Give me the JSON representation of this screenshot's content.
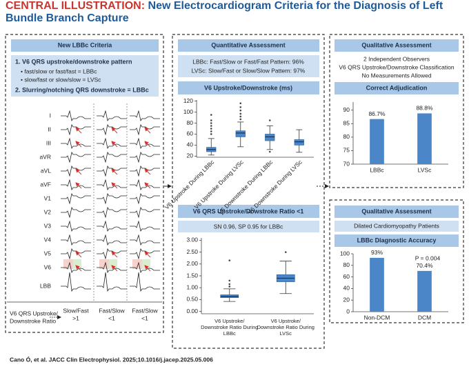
{
  "header": {
    "label": "CENTRAL ILLUSTRATION:",
    "title": "New Electrocardiogram Criteria for the Diagnosis of Left Bundle Branch Capture"
  },
  "left_panel": {
    "heading": "New LBBc Criteria",
    "criteria": [
      "1. V6 QRS upstroke/downstroke pattern",
      "• fast/slow or fast/fast = LBBc",
      "• slow/fast or slow/slow = LVSc",
      "2. Slurring/notching QRS downstroke = LBBc"
    ],
    "leads": [
      "I",
      "II",
      "III",
      "aVR",
      "aVL",
      "aVF",
      "V1",
      "V2",
      "V3",
      "V4",
      "V5",
      "V6",
      "LBB"
    ],
    "ratio_label": [
      "V6 QRS Upstroke/",
      "Downstroke Ratio"
    ],
    "columns": [
      {
        "pattern": "Slow/Fast",
        "ratio": ">1"
      },
      {
        "pattern": "Fast/Slow",
        "ratio": "<1"
      },
      {
        "pattern": "Fast/Slow",
        "ratio": "<1"
      }
    ]
  },
  "middle_panel": {
    "heading": "Quantitative Assessment",
    "results": [
      "LBBc: Fast/Slow or Fast/Fast Pattern: 96%",
      "LVSc: Slow/Fast or Slow/Slow Pattern: 97%"
    ]
  },
  "right_panel": {
    "heading": "Qualitative Assessment",
    "notes": [
      "2 Independent Observers",
      "V6 QRS Upstroke/Downstroke Classification",
      "No Measurements Allowed"
    ],
    "lower_heading": "Qualitative Assessment",
    "lower_note": "Dilated Cardiomyopathy Patients"
  },
  "chart_data": [
    {
      "type": "box",
      "title": "V6 Upstroke/Downstroke (ms)",
      "color": "#4a86c8",
      "categories": [
        "V6 Upstroke During LBBc",
        "V6 Upstroke During LVSc",
        "V6 Downstroke During LBBc",
        "V6 Downstroke During LVSc"
      ],
      "boxes": [
        {
          "min": 22,
          "q1": 28,
          "median": 32,
          "q3": 36,
          "max": 52,
          "outliers": [
            60,
            65,
            70,
            75,
            80,
            85,
            95
          ]
        },
        {
          "min": 37,
          "q1": 55,
          "median": 62,
          "q3": 66,
          "max": 82,
          "outliers": [
            87,
            92,
            97,
            103,
            109,
            116
          ]
        },
        {
          "min": 32,
          "q1": 48,
          "median": 55,
          "q3": 60,
          "max": 75,
          "outliers": [
            85,
            28
          ]
        },
        {
          "min": 27,
          "q1": 40,
          "median": 46,
          "q3": 50,
          "max": 68,
          "outliers": []
        }
      ],
      "ylim": [
        18,
        122
      ],
      "yticks": [
        20,
        40,
        60,
        80,
        100,
        120
      ]
    },
    {
      "type": "box",
      "title": "V6 QRS Upstroke/Dowstroke Ratio <1",
      "subtitle": "SN 0.96, SP 0.95 for LBBc",
      "color": "#4a86c8",
      "categories": [
        "V6 Upstroke/ Downstroke Ratio During LBBc",
        "V6 Upstroke/ Downstroke Ratio During LVSc"
      ],
      "boxes": [
        {
          "min": 0.42,
          "q1": 0.58,
          "median": 0.63,
          "q3": 0.7,
          "max": 0.95,
          "outliers": [
            1.05,
            1.15,
            1.3,
            2.15
          ]
        },
        {
          "min": 0.75,
          "q1": 1.25,
          "median": 1.4,
          "q3": 1.55,
          "max": 2.12,
          "outliers": [
            2.5
          ]
        }
      ],
      "ylim": [
        -0.1,
        3.1
      ],
      "yticks": [
        {
          "value": 0,
          "label": "0.00"
        },
        {
          "value": 0.5,
          "label": "0.50"
        },
        {
          "value": 1,
          "label": "1.00"
        },
        {
          "value": 1.5,
          "label": "1.50"
        },
        {
          "value": 2,
          "label": "2.00"
        },
        {
          "value": 2.5,
          "label": "2.50"
        },
        {
          "value": 3,
          "label": "3.00"
        }
      ]
    },
    {
      "type": "bar",
      "title": "Correct Adjudication",
      "color": "#4a86c8",
      "categories": [
        "LBBc",
        "LVSc"
      ],
      "values": [
        86.7,
        88.8
      ],
      "value_labels": [
        "86.7%",
        "88.8%"
      ],
      "ylim": [
        70,
        93
      ],
      "yticks": [
        70,
        75,
        80,
        85,
        90
      ]
    },
    {
      "type": "bar",
      "title": "LBBc Diagnostic Accuracy",
      "color": "#4a86c8",
      "annotation": "P = 0.004",
      "categories": [
        "Non-DCM",
        "DCM"
      ],
      "values": [
        93,
        70.4
      ],
      "value_labels": [
        "93%",
        "70.4%"
      ],
      "ylim": [
        0,
        100
      ],
      "yticks": [
        0,
        20,
        40,
        60,
        80,
        100
      ]
    }
  ],
  "footer": "Cano Ó, et al. JACC Clin Electrophysiol. 2025;10.1016/j.jacep.2025.05.006"
}
